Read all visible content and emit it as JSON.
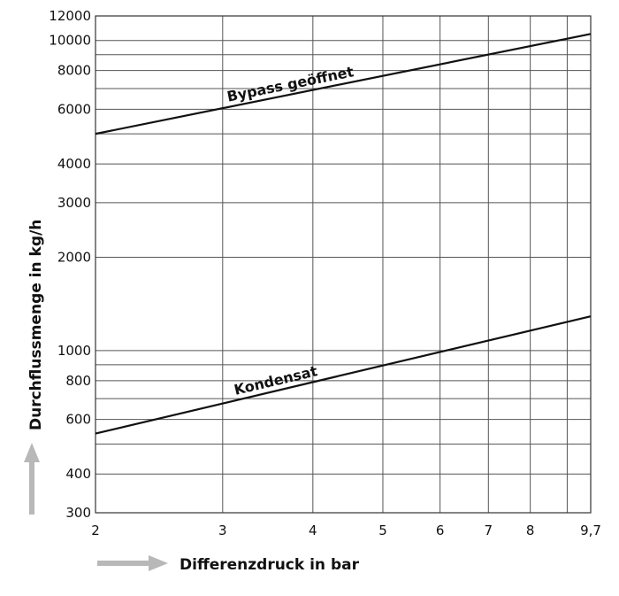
{
  "chart_data": {
    "type": "line",
    "xlabel": "Differenzdruck in bar",
    "ylabel": "Durchflussmenge in kg/h",
    "x_scale": "log",
    "y_scale": "log",
    "xlim": [
      2,
      9.7
    ],
    "ylim": [
      300,
      12000
    ],
    "x_ticks": [
      2,
      3,
      4,
      5,
      6,
      7,
      8,
      9.7
    ],
    "x_tick_labels": [
      "2",
      "3",
      "4",
      "5",
      "6",
      "7",
      "8",
      "9,7"
    ],
    "x_grid": [
      2,
      3,
      4,
      5,
      6,
      7,
      8,
      9,
      9.7
    ],
    "y_ticks": [
      300,
      400,
      600,
      800,
      1000,
      2000,
      3000,
      4000,
      6000,
      8000,
      10000,
      12000
    ],
    "y_tick_labels": [
      "300",
      "400",
      "600",
      "800",
      "1000",
      "2000",
      "3000",
      "4000",
      "6000",
      "8000",
      "10000",
      "12000"
    ],
    "y_grid": [
      300,
      400,
      500,
      600,
      700,
      800,
      900,
      1000,
      2000,
      3000,
      4000,
      5000,
      6000,
      7000,
      8000,
      9000,
      10000,
      12000
    ],
    "grid": true,
    "series": [
      {
        "name": "Bypass geöffnet",
        "x": [
          2,
          9.7
        ],
        "y": [
          5000,
          10500
        ],
        "color": "#111111"
      },
      {
        "name": "Kondensat",
        "x": [
          2,
          9.7
        ],
        "y": [
          540,
          1290
        ],
        "color": "#111111"
      }
    ],
    "arrow_color": "#b8b8b8"
  }
}
